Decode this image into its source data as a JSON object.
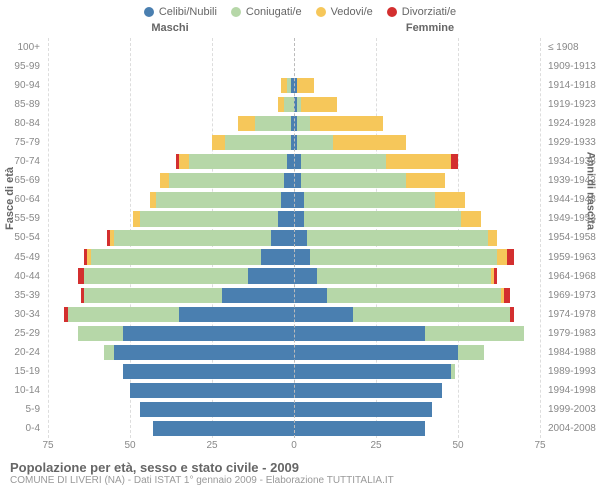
{
  "legend": [
    {
      "label": "Celibi/Nubili",
      "color": "#4a7fb0"
    },
    {
      "label": "Coniugati/e",
      "color": "#b6d7a8"
    },
    {
      "label": "Vedovi/e",
      "color": "#f6c75a"
    },
    {
      "label": "Divorziati/e",
      "color": "#d32f2f"
    }
  ],
  "gender": {
    "male": "Maschi",
    "female": "Femmine"
  },
  "axis": {
    "left_title": "Fasce di età",
    "right_title": "Anni di nascita",
    "x_ticks": [
      75,
      50,
      25,
      0,
      25,
      50,
      75
    ],
    "x_max": 75
  },
  "colors": {
    "single": "#4a7fb0",
    "married": "#b6d7a8",
    "widowed": "#f6c75a",
    "divorced": "#d32f2f",
    "grid": "#dddddd",
    "centerline": "#bbbbbb",
    "text": "#888888",
    "background": "#ffffff"
  },
  "rows": [
    {
      "age": "100+",
      "birth": "≤ 1908",
      "m": {
        "s": 0,
        "c": 0,
        "w": 0,
        "d": 0
      },
      "f": {
        "s": 0,
        "c": 0,
        "w": 0,
        "d": 0
      }
    },
    {
      "age": "95-99",
      "birth": "1909-1913",
      "m": {
        "s": 0,
        "c": 0,
        "w": 0,
        "d": 0
      },
      "f": {
        "s": 0,
        "c": 0,
        "w": 0,
        "d": 0
      }
    },
    {
      "age": "90-94",
      "birth": "1914-1918",
      "m": {
        "s": 1,
        "c": 1,
        "w": 2,
        "d": 0
      },
      "f": {
        "s": 1,
        "c": 0,
        "w": 5,
        "d": 0
      }
    },
    {
      "age": "85-89",
      "birth": "1919-1923",
      "m": {
        "s": 0,
        "c": 3,
        "w": 2,
        "d": 0
      },
      "f": {
        "s": 1,
        "c": 1,
        "w": 11,
        "d": 0
      }
    },
    {
      "age": "80-84",
      "birth": "1924-1928",
      "m": {
        "s": 1,
        "c": 11,
        "w": 5,
        "d": 0
      },
      "f": {
        "s": 1,
        "c": 4,
        "w": 22,
        "d": 0
      }
    },
    {
      "age": "75-79",
      "birth": "1929-1933",
      "m": {
        "s": 1,
        "c": 20,
        "w": 4,
        "d": 0
      },
      "f": {
        "s": 1,
        "c": 11,
        "w": 22,
        "d": 0
      }
    },
    {
      "age": "70-74",
      "birth": "1934-1938",
      "m": {
        "s": 2,
        "c": 30,
        "w": 3,
        "d": 1
      },
      "f": {
        "s": 2,
        "c": 26,
        "w": 20,
        "d": 2
      }
    },
    {
      "age": "65-69",
      "birth": "1939-1943",
      "m": {
        "s": 3,
        "c": 35,
        "w": 3,
        "d": 0
      },
      "f": {
        "s": 2,
        "c": 32,
        "w": 12,
        "d": 0
      }
    },
    {
      "age": "60-64",
      "birth": "1944-1948",
      "m": {
        "s": 4,
        "c": 38,
        "w": 2,
        "d": 0
      },
      "f": {
        "s": 3,
        "c": 40,
        "w": 9,
        "d": 0
      }
    },
    {
      "age": "55-59",
      "birth": "1949-1953",
      "m": {
        "s": 5,
        "c": 42,
        "w": 2,
        "d": 0
      },
      "f": {
        "s": 3,
        "c": 48,
        "w": 6,
        "d": 0
      }
    },
    {
      "age": "50-54",
      "birth": "1954-1958",
      "m": {
        "s": 7,
        "c": 48,
        "w": 1,
        "d": 1
      },
      "f": {
        "s": 4,
        "c": 55,
        "w": 3,
        "d": 0
      }
    },
    {
      "age": "45-49",
      "birth": "1959-1963",
      "m": {
        "s": 10,
        "c": 52,
        "w": 1,
        "d": 1
      },
      "f": {
        "s": 5,
        "c": 57,
        "w": 3,
        "d": 2
      }
    },
    {
      "age": "40-44",
      "birth": "1964-1968",
      "m": {
        "s": 14,
        "c": 50,
        "w": 0,
        "d": 2
      },
      "f": {
        "s": 7,
        "c": 53,
        "w": 1,
        "d": 1
      }
    },
    {
      "age": "35-39",
      "birth": "1969-1973",
      "m": {
        "s": 22,
        "c": 42,
        "w": 0,
        "d": 1
      },
      "f": {
        "s": 10,
        "c": 53,
        "w": 1,
        "d": 2
      }
    },
    {
      "age": "30-34",
      "birth": "1974-1978",
      "m": {
        "s": 35,
        "c": 34,
        "w": 0,
        "d": 1
      },
      "f": {
        "s": 18,
        "c": 48,
        "w": 0,
        "d": 1
      }
    },
    {
      "age": "25-29",
      "birth": "1979-1983",
      "m": {
        "s": 52,
        "c": 14,
        "w": 0,
        "d": 0
      },
      "f": {
        "s": 40,
        "c": 30,
        "w": 0,
        "d": 0
      }
    },
    {
      "age": "20-24",
      "birth": "1984-1988",
      "m": {
        "s": 55,
        "c": 3,
        "w": 0,
        "d": 0
      },
      "f": {
        "s": 50,
        "c": 8,
        "w": 0,
        "d": 0
      }
    },
    {
      "age": "15-19",
      "birth": "1989-1993",
      "m": {
        "s": 52,
        "c": 0,
        "w": 0,
        "d": 0
      },
      "f": {
        "s": 48,
        "c": 1,
        "w": 0,
        "d": 0
      }
    },
    {
      "age": "10-14",
      "birth": "1994-1998",
      "m": {
        "s": 50,
        "c": 0,
        "w": 0,
        "d": 0
      },
      "f": {
        "s": 45,
        "c": 0,
        "w": 0,
        "d": 0
      }
    },
    {
      "age": "5-9",
      "birth": "1999-2003",
      "m": {
        "s": 47,
        "c": 0,
        "w": 0,
        "d": 0
      },
      "f": {
        "s": 42,
        "c": 0,
        "w": 0,
        "d": 0
      }
    },
    {
      "age": "0-4",
      "birth": "2004-2008",
      "m": {
        "s": 43,
        "c": 0,
        "w": 0,
        "d": 0
      },
      "f": {
        "s": 40,
        "c": 0,
        "w": 0,
        "d": 0
      }
    }
  ],
  "footer": {
    "title": "Popolazione per età, sesso e stato civile - 2009",
    "subtitle": "COMUNE DI LIVERI (NA) - Dati ISTAT 1° gennaio 2009 - Elaborazione TUTTITALIA.IT"
  }
}
